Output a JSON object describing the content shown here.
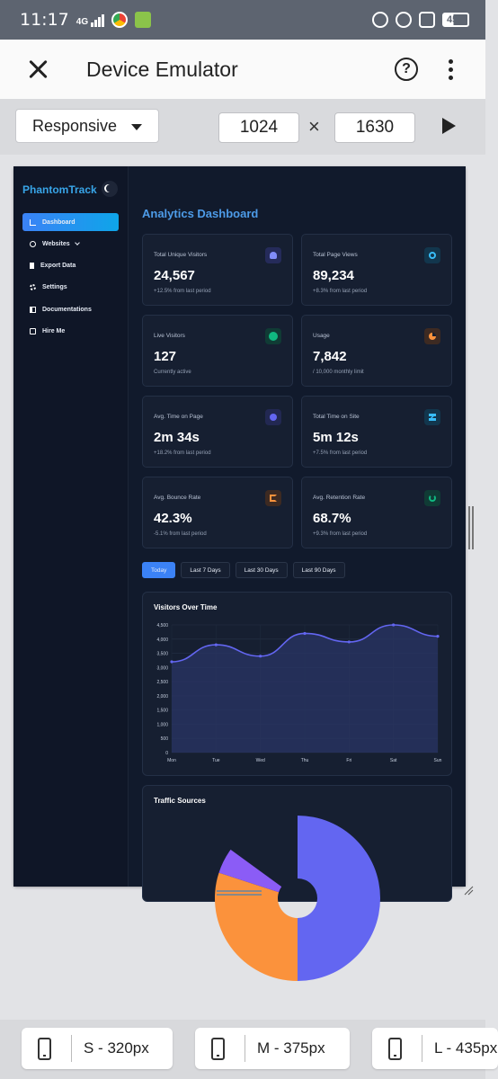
{
  "status_bar": {
    "time": "11:17",
    "network": "4G",
    "battery": "45"
  },
  "app_bar": {
    "title": "Device Emulator",
    "help_label": "?"
  },
  "toolbar": {
    "mode": "Responsive",
    "width": "1024",
    "times": "×",
    "height": "1630"
  },
  "site": {
    "brand": "PhantomTrack",
    "nav": [
      {
        "label": "Dashboard"
      },
      {
        "label": "Websites"
      },
      {
        "label": "Export Data"
      },
      {
        "label": "Settings"
      },
      {
        "label": "Documentations"
      },
      {
        "label": "Hire Me"
      }
    ],
    "title": "Analytics Dashboard",
    "cards": [
      {
        "label": "Total Unique Visitors",
        "value": "24,567",
        "sub": "+12.5% from last period",
        "icon": "users-icon",
        "color": "#6366f1"
      },
      {
        "label": "Total Page Views",
        "value": "89,234",
        "sub": "+8.3% from last period",
        "icon": "eye-icon",
        "color": "#38bdf8"
      },
      {
        "label": "Live Visitors",
        "value": "127",
        "sub": "Currently active",
        "icon": "live-dot-icon",
        "color": "#10b981"
      },
      {
        "label": "Usage",
        "value": "7,842",
        "sub": "/ 10,000 monthly limit",
        "icon": "pie-icon",
        "color": "#f97316"
      },
      {
        "label": "Avg. Time on Page",
        "value": "2m 34s",
        "sub": "+18.2% from last period",
        "icon": "stopwatch-icon",
        "color": "#6366f1"
      },
      {
        "label": "Total Time on Site",
        "value": "5m 12s",
        "sub": "+7.5% from last period",
        "icon": "hourglass-icon",
        "color": "#38bdf8"
      },
      {
        "label": "Avg. Bounce Rate",
        "value": "42.3%",
        "sub": "-5.1% from last period",
        "icon": "exit-icon",
        "color": "#f97316"
      },
      {
        "label": "Avg. Retention Rate",
        "value": "68.7%",
        "sub": "+9.3% from last period",
        "icon": "refresh-icon",
        "color": "#10b981"
      }
    ],
    "ranges": [
      "Today",
      "Last 7 Days",
      "Last 30 Days",
      "Last 90 Days"
    ],
    "visitors_title": "Visitors Over Time",
    "traffic_title": "Traffic Sources"
  },
  "chart_data": [
    {
      "type": "area",
      "title": "Visitors Over Time",
      "categories": [
        "Mon",
        "Tue",
        "Wed",
        "Thu",
        "Fri",
        "Sat",
        "Sun"
      ],
      "values": [
        3200,
        3800,
        3400,
        4200,
        3900,
        4500,
        4100
      ],
      "y_ticks": [
        "0",
        "500",
        "1,000",
        "1,500",
        "2,000",
        "2,500",
        "3,000",
        "3,500",
        "4,000",
        "4,500"
      ],
      "ylim": [
        0,
        4500
      ],
      "grid": true,
      "colors": {
        "line": "#6366f1",
        "fill": "#2a3566"
      }
    },
    {
      "type": "pie",
      "title": "Traffic Sources",
      "slices": [
        {
          "value": 0.5,
          "color": "#6366f1"
        },
        {
          "value": 0.3,
          "color": "#fb923c"
        },
        {
          "value": 0.05,
          "color": "#8b5cf6"
        }
      ],
      "colors_visible": [
        "#6366f1",
        "#fb923c",
        "#8b5cf6"
      ]
    }
  ],
  "devices": [
    {
      "label": "S - 320px"
    },
    {
      "label": "M - 375px"
    },
    {
      "label": "L - 435px"
    }
  ]
}
